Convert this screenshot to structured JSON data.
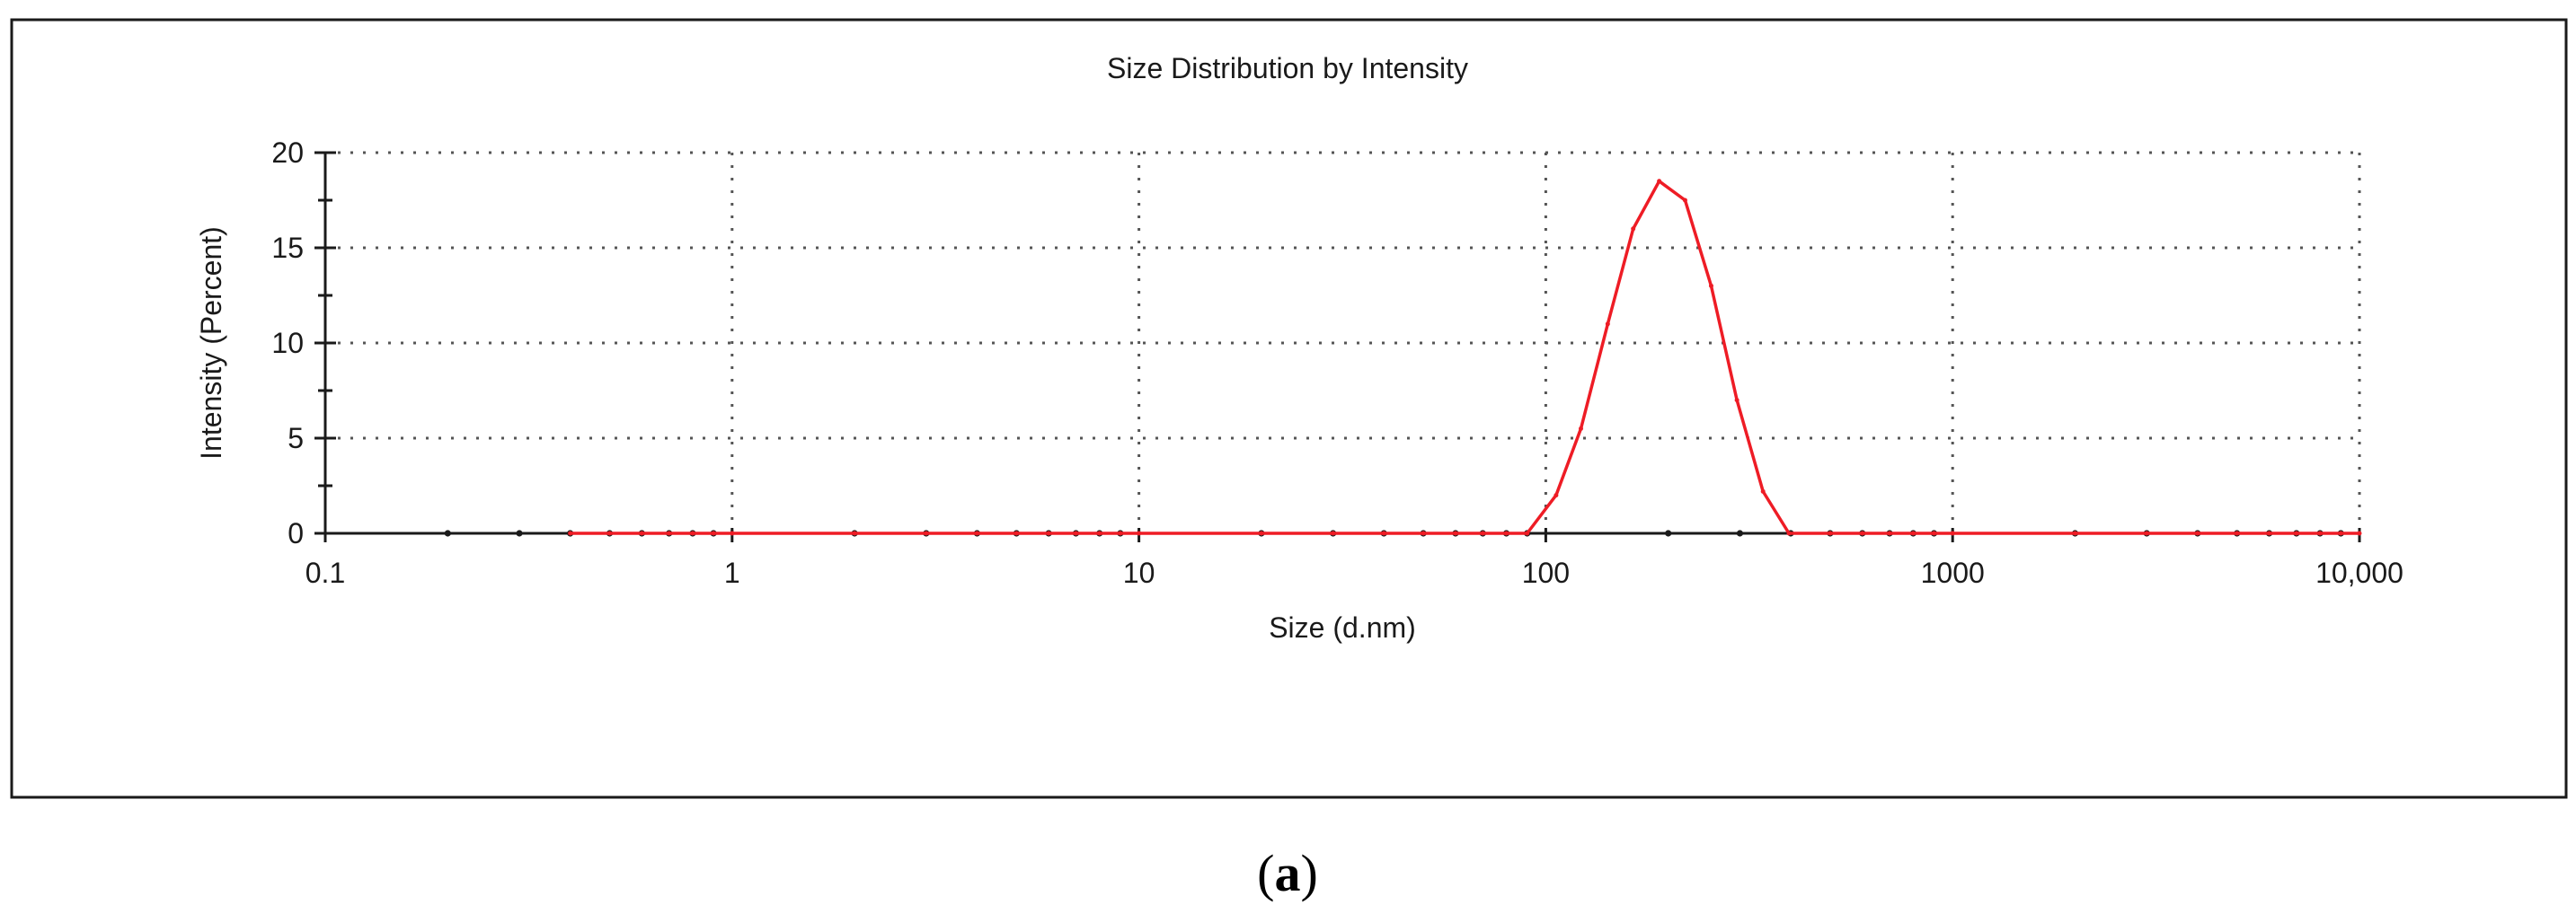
{
  "chart_data": {
    "type": "line",
    "title": "Size Distribution by Intensity",
    "xlabel": "Size (d.nm)",
    "ylabel": "Intensity (Percent)",
    "x_scale": "log",
    "xlim": [
      0.1,
      10000
    ],
    "ylim": [
      0,
      20
    ],
    "x_ticks": [
      0.1,
      1,
      10,
      100,
      1000,
      10000
    ],
    "x_tick_labels": [
      "0.1",
      "1",
      "10",
      "100",
      "1000",
      "10,000"
    ],
    "y_ticks": [
      0,
      5,
      10,
      15,
      20
    ],
    "y_tick_labels": [
      "0",
      "5",
      "10",
      "15",
      "20"
    ],
    "grid": true,
    "legend": "none",
    "series": [
      {
        "color": "#ee1c25",
        "x": [
          0.4,
          0.5,
          0.6,
          0.7,
          0.8,
          0.9,
          1,
          2,
          3,
          4,
          5,
          6,
          7,
          8,
          9,
          10,
          20,
          30,
          40,
          50,
          60,
          70,
          80,
          90,
          106,
          122,
          142,
          164,
          190,
          220,
          255,
          295,
          342,
          396,
          500,
          600,
          700,
          800,
          900,
          1000,
          2000,
          3000,
          4000,
          5000,
          6000,
          7000,
          8000,
          9000,
          10000
        ],
        "y": [
          0,
          0,
          0,
          0,
          0,
          0,
          0,
          0,
          0,
          0,
          0,
          0,
          0,
          0,
          0,
          0,
          0,
          0,
          0,
          0,
          0,
          0,
          0,
          0,
          2.0,
          5.5,
          11.0,
          16.0,
          18.5,
          17.5,
          13.0,
          7.0,
          2.2,
          0,
          0,
          0,
          0,
          0,
          0,
          0,
          0,
          0,
          0,
          0,
          0,
          0,
          0,
          0,
          0
        ]
      }
    ]
  },
  "caption": {
    "open": "(",
    "letter": "a",
    "close": ")"
  },
  "colors": {
    "frame": "#1a1a1a",
    "line": "#ee1c25",
    "grid": "#555555"
  }
}
